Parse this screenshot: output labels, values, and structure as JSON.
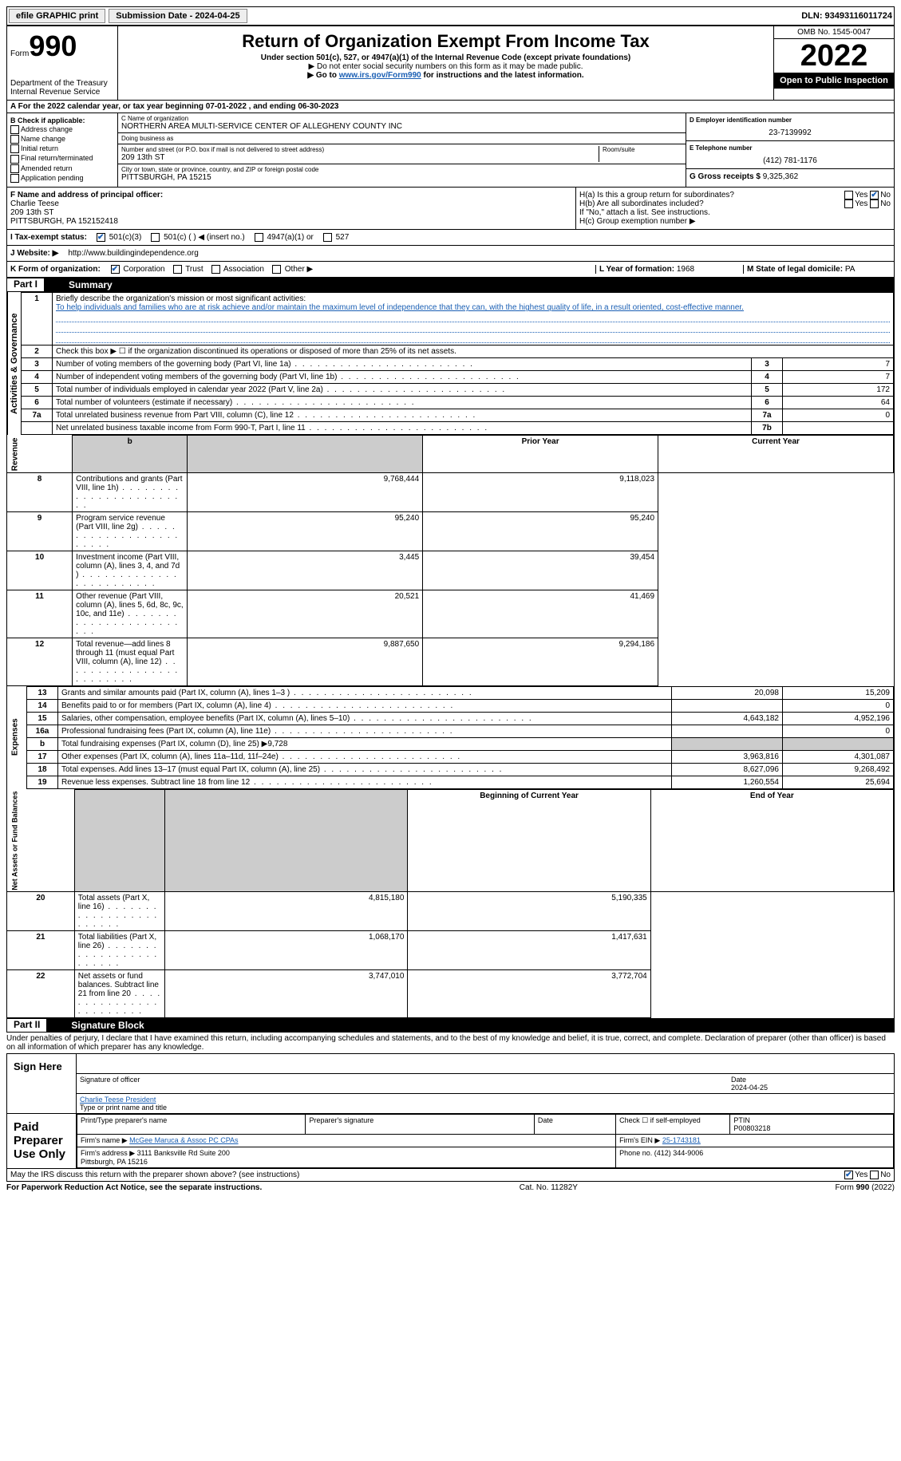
{
  "top_bar": {
    "efile_label": "efile GRAPHIC print",
    "submission_label": "Submission Date - 2024-04-25",
    "dln_label": "DLN: 93493116011724"
  },
  "header": {
    "form_word": "Form",
    "form_num": "990",
    "dept": "Department of the Treasury\nInternal Revenue Service",
    "title": "Return of Organization Exempt From Income Tax",
    "subtitle": "Under section 501(c), 527, or 4947(a)(1) of the Internal Revenue Code (except private foundations)",
    "note1": "▶ Do not enter social security numbers on this form as it may be made public.",
    "note2_pre": "▶ Go to ",
    "note2_link": "www.irs.gov/Form990",
    "note2_post": " for instructions and the latest information.",
    "omb": "OMB No. 1545-0047",
    "year": "2022",
    "open_public": "Open to Public Inspection"
  },
  "section_a": "A For the 2022 calendar year, or tax year beginning 07-01-2022    , and ending 06-30-2023",
  "col_b": {
    "header": "B Check if applicable:",
    "opts": [
      "Address change",
      "Name change",
      "Initial return",
      "Final return/terminated",
      "Amended return",
      "Application pending"
    ]
  },
  "col_c": {
    "name_label": "C Name of organization",
    "name": "NORTHERN AREA MULTI-SERVICE CENTER OF ALLEGHENY COUNTY INC",
    "dba_label": "Doing business as",
    "dba": "",
    "addr_label": "Number and street (or P.O. box if mail is not delivered to street address)",
    "room_label": "Room/suite",
    "addr": "209 13th ST",
    "city_label": "City or town, state or province, country, and ZIP or foreign postal code",
    "city": "PITTSBURGH, PA  15215"
  },
  "col_d": {
    "ein_label": "D Employer identification number",
    "ein": "23-7139992",
    "phone_label": "E Telephone number",
    "phone": "(412) 781-1176",
    "gross_label": "G Gross receipts $",
    "gross": "9,325,362"
  },
  "row_f": {
    "label": "F Name and address of principal officer:",
    "name": "Charlie Teese",
    "addr": "209 13th ST\nPITTSBURGH, PA  152152418"
  },
  "row_h": {
    "ha_label": "H(a)  Is this a group return for subordinates?",
    "hb_label": "H(b)  Are all subordinates included?",
    "hb_note": "If \"No,\" attach a list. See instructions.",
    "hc_label": "H(c)  Group exemption number ▶"
  },
  "row_i": {
    "label": "I  Tax-exempt status:",
    "opt1": "501(c)(3)",
    "opt2": "501(c) (  ) ◀ (insert no.)",
    "opt3": "4947(a)(1) or",
    "opt4": "527"
  },
  "row_j": {
    "label": "J  Website: ▶",
    "url": "http://www.buildingindependence.org"
  },
  "row_k": {
    "label": "K Form of organization:",
    "opts": [
      "Corporation",
      "Trust",
      "Association",
      "Other ▶"
    ],
    "l_label": "L Year of formation:",
    "l_val": "1968",
    "m_label": "M State of legal domicile:",
    "m_val": "PA"
  },
  "part1": {
    "num": "Part I",
    "title": "Summary",
    "q1": "Briefly describe the organization's mission or most significant activities:",
    "q1_text": "To help individuals and families who are at risk achieve and/or maintain the maximum level of independence that they can, with the highest quality of life, in a result oriented, cost-effective manner.",
    "q2": "Check this box ▶ ☐  if the organization discontinued its operations or disposed of more than 25% of its net assets.",
    "rows_single": [
      {
        "n": "3",
        "d": "Number of voting members of the governing body (Part VI, line 1a)",
        "b": "3",
        "v": "7"
      },
      {
        "n": "4",
        "d": "Number of independent voting members of the governing body (Part VI, line 1b)",
        "b": "4",
        "v": "7"
      },
      {
        "n": "5",
        "d": "Total number of individuals employed in calendar year 2022 (Part V, line 2a)",
        "b": "5",
        "v": "172"
      },
      {
        "n": "6",
        "d": "Total number of volunteers (estimate if necessary)",
        "b": "6",
        "v": "64"
      },
      {
        "n": "7a",
        "d": "Total unrelated business revenue from Part VIII, column (C), line 12",
        "b": "7a",
        "v": "0"
      },
      {
        "n": "",
        "d": "Net unrelated business taxable income from Form 990-T, Part I, line 11",
        "b": "7b",
        "v": ""
      }
    ],
    "col_hdr_prior": "Prior Year",
    "col_hdr_current": "Current Year",
    "revenue_label": "Revenue",
    "revenue_rows": [
      {
        "n": "8",
        "d": "Contributions and grants (Part VIII, line 1h)",
        "p": "9,768,444",
        "c": "9,118,023"
      },
      {
        "n": "9",
        "d": "Program service revenue (Part VIII, line 2g)",
        "p": "95,240",
        "c": "95,240"
      },
      {
        "n": "10",
        "d": "Investment income (Part VIII, column (A), lines 3, 4, and 7d )",
        "p": "3,445",
        "c": "39,454"
      },
      {
        "n": "11",
        "d": "Other revenue (Part VIII, column (A), lines 5, 6d, 8c, 9c, 10c, and 11e)",
        "p": "20,521",
        "c": "41,469"
      },
      {
        "n": "12",
        "d": "Total revenue—add lines 8 through 11 (must equal Part VIII, column (A), line 12)",
        "p": "9,887,650",
        "c": "9,294,186"
      }
    ],
    "expenses_label": "Expenses",
    "expenses_rows": [
      {
        "n": "13",
        "d": "Grants and similar amounts paid (Part IX, column (A), lines 1–3 )",
        "p": "20,098",
        "c": "15,209"
      },
      {
        "n": "14",
        "d": "Benefits paid to or for members (Part IX, column (A), line 4)",
        "p": "",
        "c": "0"
      },
      {
        "n": "15",
        "d": "Salaries, other compensation, employee benefits (Part IX, column (A), lines 5–10)",
        "p": "4,643,182",
        "c": "4,952,196"
      },
      {
        "n": "16a",
        "d": "Professional fundraising fees (Part IX, column (A), line 11e)",
        "p": "",
        "c": "0"
      },
      {
        "n": "b",
        "d": "Total fundraising expenses (Part IX, column (D), line 25) ▶9,728",
        "p": "__SHADE__",
        "c": "__SHADE__"
      },
      {
        "n": "17",
        "d": "Other expenses (Part IX, column (A), lines 11a–11d, 11f–24e)",
        "p": "3,963,816",
        "c": "4,301,087"
      },
      {
        "n": "18",
        "d": "Total expenses. Add lines 13–17 (must equal Part IX, column (A), line 25)",
        "p": "8,627,096",
        "c": "9,268,492"
      },
      {
        "n": "19",
        "d": "Revenue less expenses. Subtract line 18 from line 12",
        "p": "1,260,554",
        "c": "25,694"
      }
    ],
    "net_label": "Net Assets or Fund Balances",
    "col_hdr_begin": "Beginning of Current Year",
    "col_hdr_end": "End of Year",
    "net_rows": [
      {
        "n": "20",
        "d": "Total assets (Part X, line 16)",
        "p": "4,815,180",
        "c": "5,190,335"
      },
      {
        "n": "21",
        "d": "Total liabilities (Part X, line 26)",
        "p": "1,068,170",
        "c": "1,417,631"
      },
      {
        "n": "22",
        "d": "Net assets or fund balances. Subtract line 21 from line 20",
        "p": "3,747,010",
        "c": "3,772,704"
      }
    ],
    "activities_label": "Activities & Governance"
  },
  "part2": {
    "num": "Part II",
    "title": "Signature Block",
    "perjury": "Under penalties of perjury, I declare that I have examined this return, including accompanying schedules and statements, and to the best of my knowledge and belief, it is true, correct, and complete. Declaration of preparer (other than officer) is based on all information of which preparer has any knowledge.",
    "sign_here": "Sign Here",
    "sig_label": "Signature of officer",
    "sig_date": "2024-04-25",
    "date_label": "Date",
    "sig_name": "Charlie Teese  President",
    "sig_name_label": "Type or print name and title",
    "paid_prep": "Paid Preparer Use Only",
    "prep_name_label": "Print/Type preparer's name",
    "prep_sig_label": "Preparer's signature",
    "prep_date_label": "Date",
    "prep_check_label": "Check ☐ if self-employed",
    "ptin_label": "PTIN",
    "ptin": "P00803218",
    "firm_name_label": "Firm's name      ▶",
    "firm_name": "McGee Maruca & Assoc PC CPAs",
    "firm_ein_label": "Firm's EIN ▶",
    "firm_ein": "25-1743181",
    "firm_addr_label": "Firm's address ▶",
    "firm_addr": "3111 Banksville Rd Suite 200\nPittsburgh, PA  15216",
    "firm_phone_label": "Phone no.",
    "firm_phone": "(412) 344-9006",
    "discuss": "May the IRS discuss this return with the preparer shown above? (see instructions)"
  },
  "footer": {
    "paperwork": "For Paperwork Reduction Act Notice, see the separate instructions.",
    "cat": "Cat. No. 11282Y",
    "form": "Form 990 (2022)"
  }
}
